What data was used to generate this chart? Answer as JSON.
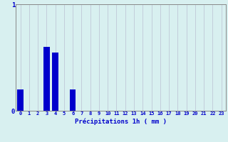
{
  "values": [
    0.2,
    0,
    0,
    0.6,
    0.55,
    0,
    0.2,
    0,
    0,
    0,
    0,
    0,
    0,
    0,
    0,
    0,
    0,
    0,
    0,
    0,
    0,
    0,
    0,
    0
  ],
  "hours": [
    0,
    1,
    2,
    3,
    4,
    5,
    6,
    7,
    8,
    9,
    10,
    11,
    12,
    13,
    14,
    15,
    16,
    17,
    18,
    19,
    20,
    21,
    22,
    23
  ],
  "bar_color": "#0000cc",
  "background_color": "#d8f0f0",
  "grid_color_v": "#c0c8d8",
  "grid_color_h": "#c0c8d8",
  "xlabel": "Précipitations 1h ( mm )",
  "xlabel_color": "#0000cc",
  "tick_color": "#0000cc",
  "ylim": [
    0,
    1.0
  ],
  "yticks": [
    0,
    1
  ],
  "xlim": [
    -0.5,
    23.5
  ],
  "spine_color": "#888888"
}
